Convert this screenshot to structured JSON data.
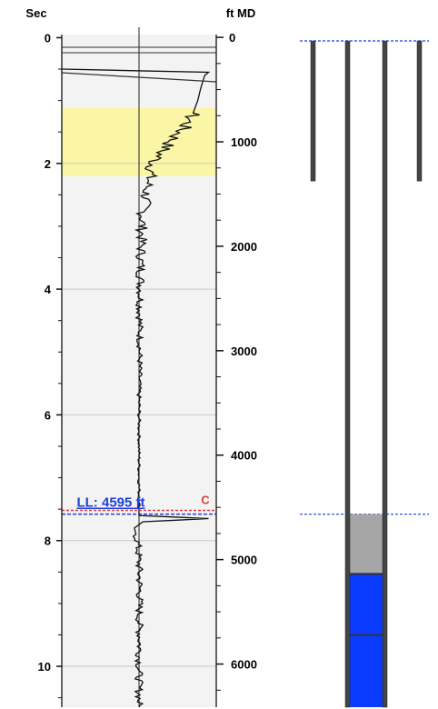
{
  "header": {
    "left_axis_title": "Sec",
    "right_axis_title": "ft MD"
  },
  "annotations": {
    "liquid_level": "LL: 4595 ft",
    "marker": "C"
  },
  "colors": {
    "highlight_band": "#fbf6a6",
    "plot_background": "#f3f3f3",
    "liquid_level_line": "#1f3fd6",
    "marker_line": "#e03a3a",
    "gas_column": "#a6a6a6",
    "liquid_column": "#0a3cff",
    "tubing": "#444444"
  },
  "chart_data": {
    "type": "line",
    "title": "",
    "left_axis": {
      "label": "Sec",
      "range": [
        -0.05,
        10.65
      ],
      "ticks": [
        0,
        2,
        4,
        6,
        8,
        10
      ]
    },
    "right_axis": {
      "label": "ft MD",
      "range": [
        -27,
        6413
      ],
      "ticks": [
        0,
        1000,
        2000,
        3000,
        4000,
        5000,
        6000
      ]
    },
    "highlight_band_sec": [
      1.12,
      2.2
    ],
    "liquid_level_sec": 7.58,
    "marker_line_sec": 7.52,
    "trace": {
      "time_sec": [
        0.5,
        0.55,
        0.6,
        0.8,
        1.0,
        1.2,
        1.4,
        1.6,
        1.8,
        2.0,
        2.2,
        2.4,
        2.6,
        2.8,
        3.0,
        3.3,
        3.6,
        4.0,
        4.4,
        4.8,
        5.2,
        5.6,
        6.0,
        6.4,
        6.8,
        7.2,
        7.5,
        7.6,
        7.65,
        7.7,
        7.8,
        7.9,
        8.0,
        8.4,
        8.8,
        9.2,
        9.6,
        10.0,
        10.4,
        10.65
      ],
      "amplitude": [
        -1.0,
        0.9,
        0.85,
        0.8,
        0.76,
        0.7,
        0.6,
        0.45,
        0.3,
        0.18,
        0.14,
        0.1,
        0.08,
        0.05,
        0.04,
        0.03,
        0.02,
        0.02,
        0.01,
        0.01,
        0.01,
        0.0,
        0.0,
        0.0,
        0.0,
        0.0,
        0.0,
        0.0,
        0.9,
        0.05,
        -0.06,
        -0.04,
        -0.02,
        0.0,
        0.01,
        0.0,
        0.01,
        0.0,
        0.0,
        0.0
      ]
    },
    "wellbore_sec": {
      "casing_bottom": 2.28,
      "gas_top": 7.58,
      "gas_bottom": 8.53,
      "liquid_bottom": 10.65,
      "liquid_joint": 9.5
    }
  }
}
